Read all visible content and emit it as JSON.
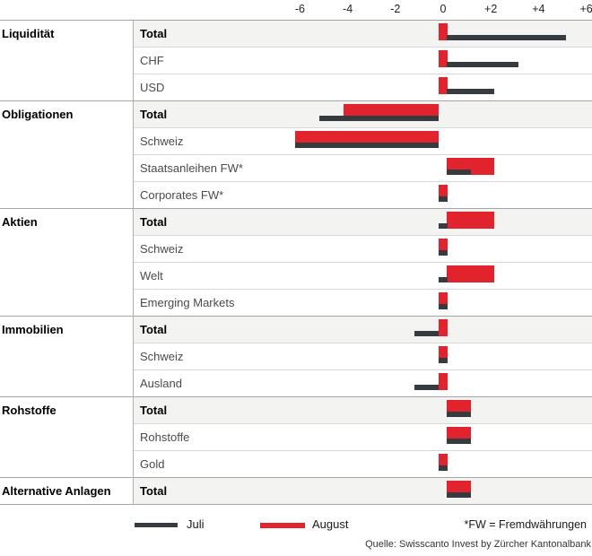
{
  "axis": {
    "ticks": [
      "-6",
      "-4",
      "-2",
      "0",
      "+2",
      "+4",
      "+6"
    ],
    "tick_values": [
      -6,
      -4,
      -2,
      0,
      2,
      4,
      6
    ]
  },
  "chart_data": {
    "type": "bar",
    "orientation": "horizontal",
    "xlim": [
      -6,
      6
    ],
    "grid": false,
    "legend_position": "bottom",
    "series_names": [
      "Juli",
      "August"
    ],
    "groups": [
      {
        "category": "Liquidität",
        "rows": [
          {
            "label": "Total",
            "bold": true,
            "juli": 5,
            "august": 0
          },
          {
            "label": "CHF",
            "bold": false,
            "juli": 3,
            "august": 0
          },
          {
            "label": "USD",
            "bold": false,
            "juli": 2,
            "august": 0
          }
        ]
      },
      {
        "category": "Obligationen",
        "rows": [
          {
            "label": "Total",
            "bold": true,
            "juli": -5,
            "august": -4
          },
          {
            "label": "Schweiz",
            "bold": false,
            "juli": -6,
            "august": -6
          },
          {
            "label": "Staatsanleihen FW*",
            "bold": false,
            "juli": 1,
            "august": 2
          },
          {
            "label": "Corporates FW*",
            "bold": false,
            "juli": 0,
            "august": 0
          }
        ]
      },
      {
        "category": "Aktien",
        "rows": [
          {
            "label": "Total",
            "bold": true,
            "juli": 0,
            "august": 2
          },
          {
            "label": "Schweiz",
            "bold": false,
            "juli": 0,
            "august": 0
          },
          {
            "label": "Welt",
            "bold": false,
            "juli": 0,
            "august": 2
          },
          {
            "label": "Emerging Markets",
            "bold": false,
            "juli": 0,
            "august": 0
          }
        ]
      },
      {
        "category": "Immobilien",
        "rows": [
          {
            "label": "Total",
            "bold": true,
            "juli": -1,
            "august": 0
          },
          {
            "label": "Schweiz",
            "bold": false,
            "juli": 0,
            "august": 0
          },
          {
            "label": "Ausland",
            "bold": false,
            "juli": -1,
            "august": 0
          }
        ]
      },
      {
        "category": "Rohstoffe",
        "rows": [
          {
            "label": "Total",
            "bold": true,
            "juli": 1,
            "august": 1
          },
          {
            "label": "Rohstoffe",
            "bold": false,
            "juli": 1,
            "august": 1
          },
          {
            "label": "Gold",
            "bold": false,
            "juli": 0,
            "august": 0
          }
        ]
      },
      {
        "category": "Alternative Anlagen",
        "rows": [
          {
            "label": "Total",
            "bold": true,
            "juli": 1,
            "august": 1
          }
        ]
      }
    ]
  },
  "legend": {
    "juli_label": "Juli",
    "august_label": "August",
    "footnote": "*FW = Fremdwährungen"
  },
  "source": "Quelle: Swisscanto Invest by Zürcher Kantonalbank",
  "colors": {
    "juli": "#353b3e",
    "august": "#e0232d",
    "total_row_bg": "#f3f3f2",
    "section_line": "#a6a6a6",
    "row_line": "#d8d8d8"
  }
}
